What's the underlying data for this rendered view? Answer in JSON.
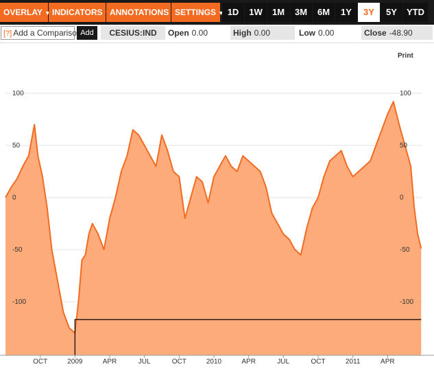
{
  "toolbar": {
    "menus": [
      {
        "label": "OVERLAY",
        "caret": "▼"
      },
      {
        "label": "INDICATORS",
        "caret": "▼"
      },
      {
        "label": "ANNOTATIONS",
        "caret": "▼"
      },
      {
        "label": "SETTINGS",
        "caret": "▼"
      }
    ],
    "ranges": [
      "1D",
      "1W",
      "1M",
      "3M",
      "6M",
      "1Y",
      "3Y",
      "5Y",
      "YTD"
    ],
    "active_range": "3Y"
  },
  "infobar": {
    "help": "[?]",
    "compare_placeholder": "Add a Comparison",
    "add_label": "Add",
    "ticker": "CESIUS:IND",
    "open_label": "Open",
    "open_value": "0.00",
    "high_label": "High",
    "high_value": "0.00",
    "low_label": "Low",
    "low_value": "0.00",
    "close_label": "Close",
    "close_value": "-48.90"
  },
  "print_label": "Print",
  "colors": {
    "accent": "#f26b21",
    "fill": "#fdab7b",
    "line": "#f26b21",
    "toolbar": "#1a1a1a"
  },
  "chart_data": {
    "type": "area",
    "ylim": [
      -150,
      120
    ],
    "yticks": [
      100,
      50,
      0,
      -50,
      -100
    ],
    "xlim": [
      0,
      36
    ],
    "x_ticks": [
      {
        "x": 3,
        "label": "OCT"
      },
      {
        "x": 6,
        "label": "2009"
      },
      {
        "x": 9,
        "label": "APR"
      },
      {
        "x": 12,
        "label": "JUL"
      },
      {
        "x": 15,
        "label": "OCT"
      },
      {
        "x": 18,
        "label": "2010"
      },
      {
        "x": 21,
        "label": "APR"
      },
      {
        "x": 24,
        "label": "JUL"
      },
      {
        "x": 27,
        "label": "OCT"
      },
      {
        "x": 30,
        "label": "2011"
      },
      {
        "x": 33,
        "label": "APR"
      }
    ],
    "series": [
      {
        "x": [
          0,
          0.5,
          1,
          1.5,
          2,
          2.5,
          2.8,
          3.2,
          3.6,
          4,
          4.5,
          5,
          5.5,
          6,
          6.3,
          6.6,
          6.9,
          7.2,
          7.5,
          8,
          8.5,
          9,
          9.5,
          10,
          10.5,
          11,
          11.5,
          12,
          12.5,
          13,
          13.5,
          14,
          14.5,
          15,
          15.5,
          16,
          16.5,
          17,
          17.5,
          18,
          18.5,
          19,
          19.5,
          20,
          20.5,
          21,
          21.5,
          22,
          22.5,
          23,
          23.5,
          24,
          24.5,
          25,
          25.5,
          26,
          26.5,
          27,
          27.5,
          28,
          28.5,
          29,
          29.5,
          30,
          30.5,
          31,
          31.5,
          32,
          32.5,
          33,
          33.5,
          34,
          34.5,
          35,
          35.3,
          35.6,
          35.9
        ],
        "y": [
          0,
          10,
          18,
          30,
          40,
          70,
          40,
          20,
          -10,
          -50,
          -80,
          -110,
          -125,
          -130,
          -100,
          -60,
          -55,
          -35,
          -25,
          -35,
          -50,
          -20,
          0,
          25,
          40,
          65,
          60,
          50,
          40,
          30,
          60,
          45,
          25,
          20,
          -20,
          0,
          20,
          15,
          -5,
          20,
          30,
          40,
          30,
          25,
          40,
          35,
          30,
          25,
          10,
          -15,
          -25,
          -35,
          -40,
          -50,
          -55,
          -30,
          -10,
          0,
          20,
          35,
          40,
          45,
          30,
          20,
          25,
          30,
          35,
          50,
          65,
          80,
          92,
          70,
          50,
          30,
          -10,
          -35,
          -48.9
        ]
      }
    ],
    "reference_line": {
      "y": -117,
      "x_start": 6.0,
      "x_end": 35.9
    }
  }
}
